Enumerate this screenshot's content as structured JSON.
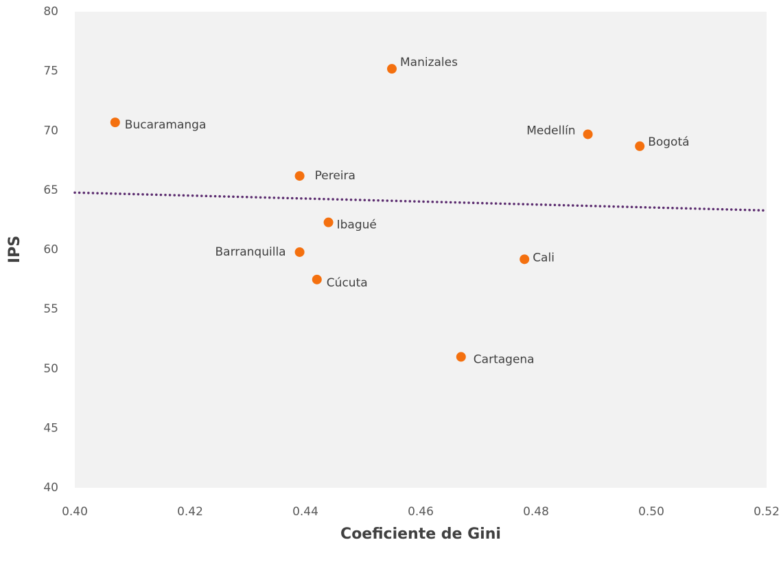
{
  "chart_data": {
    "type": "scatter",
    "x_label": "Coeficiente de Gini",
    "y_label": "IPS",
    "categories": [
      "Bucaramanga",
      "Manizales",
      "Medellín",
      "Bogotá",
      "Pereira",
      "Ibagué",
      "Barranquilla",
      "Cali",
      "Cúcuta",
      "Cartagena"
    ],
    "x": [
      0.407,
      0.455,
      0.489,
      0.498,
      0.439,
      0.444,
      0.439,
      0.478,
      0.442,
      0.467
    ],
    "values": [
      70.7,
      75.2,
      69.7,
      68.7,
      66.2,
      62.3,
      59.8,
      59.2,
      57.5,
      51.0
    ],
    "color": "#f4700f",
    "trendline": {
      "color": "#5b2c6f",
      "x": [
        0.4,
        0.52
      ],
      "values": [
        64.8,
        63.3
      ]
    },
    "xlim": [
      0.4,
      0.52
    ],
    "xticks": [
      {
        "value": 0.4,
        "label": "0.40"
      },
      {
        "value": 0.42,
        "label": "0.42"
      },
      {
        "value": 0.44,
        "label": "0.44"
      },
      {
        "value": 0.46,
        "label": "0.46"
      },
      {
        "value": 0.48,
        "label": "0.48"
      },
      {
        "value": 0.5,
        "label": "0.50"
      },
      {
        "value": 0.52,
        "label": "0.52"
      }
    ],
    "ylim": [
      40,
      80
    ],
    "yticks": [
      40,
      45,
      50,
      55,
      60,
      65,
      70,
      75,
      80
    ]
  }
}
